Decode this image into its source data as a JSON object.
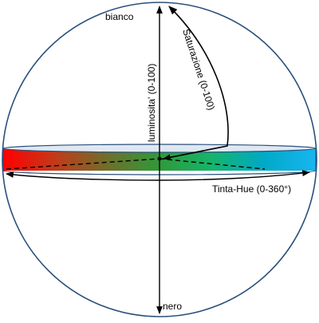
{
  "labels": {
    "top": "bianco",
    "bottom": "nero",
    "vertical_axis": "luminosita' (0-100)",
    "radius": "Saturazione (0-100)",
    "hue": "Tinta-Hue (0-360°)"
  },
  "colors": {
    "sphere_outline": "#2a4f7c",
    "band_outline": "#2a4f7c",
    "band_gradient": [
      "#ff0000",
      "#c23a1a",
      "#6f6f2a",
      "#2e9a3a",
      "#16b46a",
      "#00a9c7",
      "#18b6f0"
    ],
    "band_top": "#dfe8f2",
    "axis": "#000000"
  }
}
